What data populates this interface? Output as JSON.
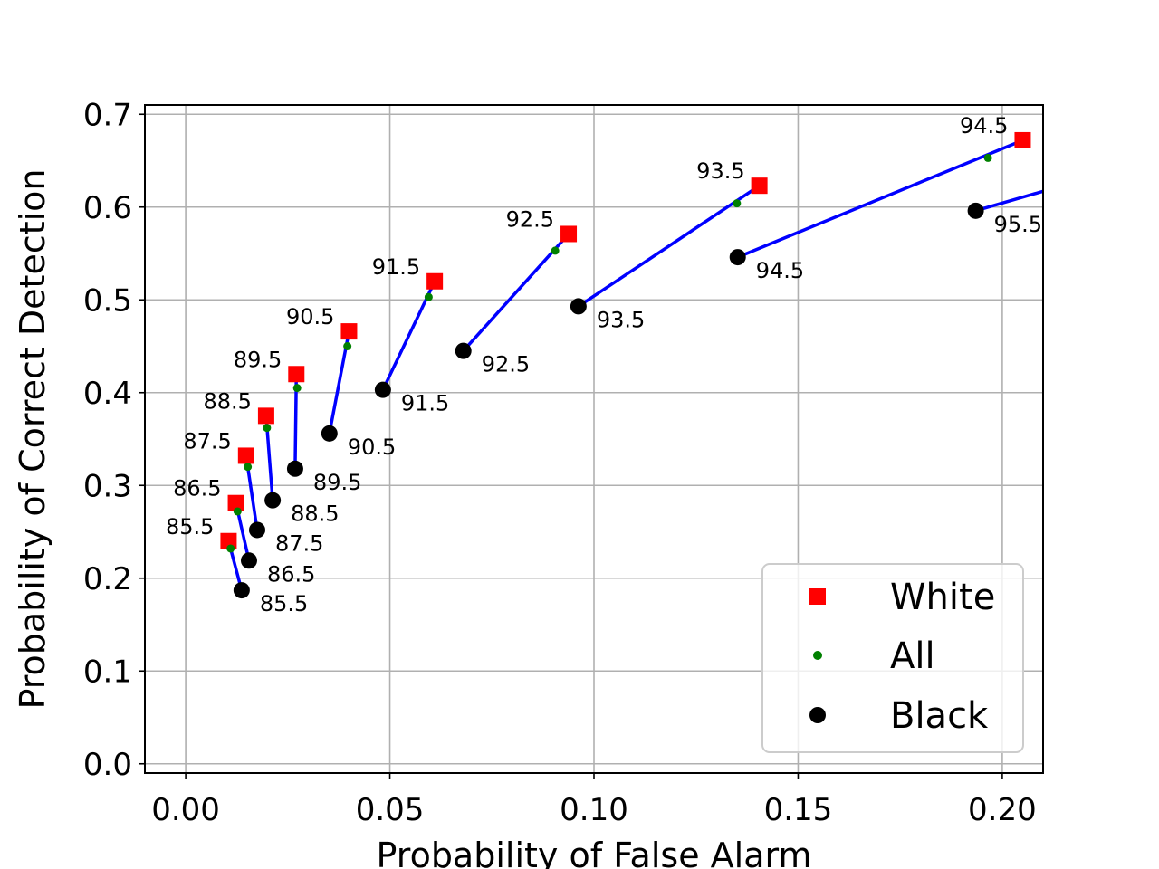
{
  "chart_data": {
    "type": "scatter",
    "title": "",
    "xlabel": "Probability of False Alarm",
    "ylabel": "Probability of Correct Detection",
    "xlim": [
      -0.01,
      0.21
    ],
    "ylim": [
      -0.01,
      0.71
    ],
    "xticks": [
      0.0,
      0.05,
      0.1,
      0.15,
      0.2
    ],
    "xtick_labels": [
      "0.00",
      "0.05",
      "0.10",
      "0.15",
      "0.20"
    ],
    "yticks": [
      0.0,
      0.1,
      0.2,
      0.3,
      0.4,
      0.5,
      0.6,
      0.7
    ],
    "ytick_labels": [
      "0.0",
      "0.1",
      "0.2",
      "0.3",
      "0.4",
      "0.5",
      "0.6",
      "0.7"
    ],
    "grid": true,
    "legend_position": "bottom-right",
    "connector_color": "#0000ff",
    "series": [
      {
        "name": "White",
        "marker": "square",
        "color": "#ff0000",
        "points": [
          {
            "x": 0.0105,
            "y": 0.24,
            "label": "85.5"
          },
          {
            "x": 0.0123,
            "y": 0.281,
            "label": "86.5"
          },
          {
            "x": 0.0148,
            "y": 0.332,
            "label": "87.5"
          },
          {
            "x": 0.0197,
            "y": 0.375,
            "label": "88.5"
          },
          {
            "x": 0.0271,
            "y": 0.42,
            "label": "89.5"
          },
          {
            "x": 0.04,
            "y": 0.466,
            "label": "90.5"
          },
          {
            "x": 0.061,
            "y": 0.52,
            "label": "91.5"
          },
          {
            "x": 0.0938,
            "y": 0.571,
            "label": "92.5"
          },
          {
            "x": 0.1405,
            "y": 0.623,
            "label": "93.5"
          },
          {
            "x": 0.205,
            "y": 0.672,
            "label": "94.5"
          }
        ]
      },
      {
        "name": "All",
        "marker": "dot",
        "color": "#008000",
        "points": [
          {
            "x": 0.011,
            "y": 0.232
          },
          {
            "x": 0.0127,
            "y": 0.272
          },
          {
            "x": 0.0152,
            "y": 0.32
          },
          {
            "x": 0.0199,
            "y": 0.362
          },
          {
            "x": 0.0273,
            "y": 0.405
          },
          {
            "x": 0.0396,
            "y": 0.45
          },
          {
            "x": 0.0595,
            "y": 0.503
          },
          {
            "x": 0.0905,
            "y": 0.553
          },
          {
            "x": 0.135,
            "y": 0.604
          },
          {
            "x": 0.1965,
            "y": 0.653
          }
        ]
      },
      {
        "name": "Black",
        "marker": "circle",
        "color": "#000000",
        "points": [
          {
            "x": 0.0137,
            "y": 0.187,
            "label": "85.5"
          },
          {
            "x": 0.0155,
            "y": 0.219,
            "label": "86.5"
          },
          {
            "x": 0.0175,
            "y": 0.252,
            "label": "87.5"
          },
          {
            "x": 0.0213,
            "y": 0.284,
            "label": "88.5"
          },
          {
            "x": 0.0268,
            "y": 0.318,
            "label": "89.5"
          },
          {
            "x": 0.0352,
            "y": 0.356,
            "label": "90.5"
          },
          {
            "x": 0.0483,
            "y": 0.403,
            "label": "91.5"
          },
          {
            "x": 0.068,
            "y": 0.445,
            "label": "92.5"
          },
          {
            "x": 0.0962,
            "y": 0.493,
            "label": "93.5"
          },
          {
            "x": 0.1352,
            "y": 0.546,
            "label": "94.5"
          },
          {
            "x": 0.1935,
            "y": 0.596,
            "label": "95.5"
          }
        ]
      }
    ]
  }
}
